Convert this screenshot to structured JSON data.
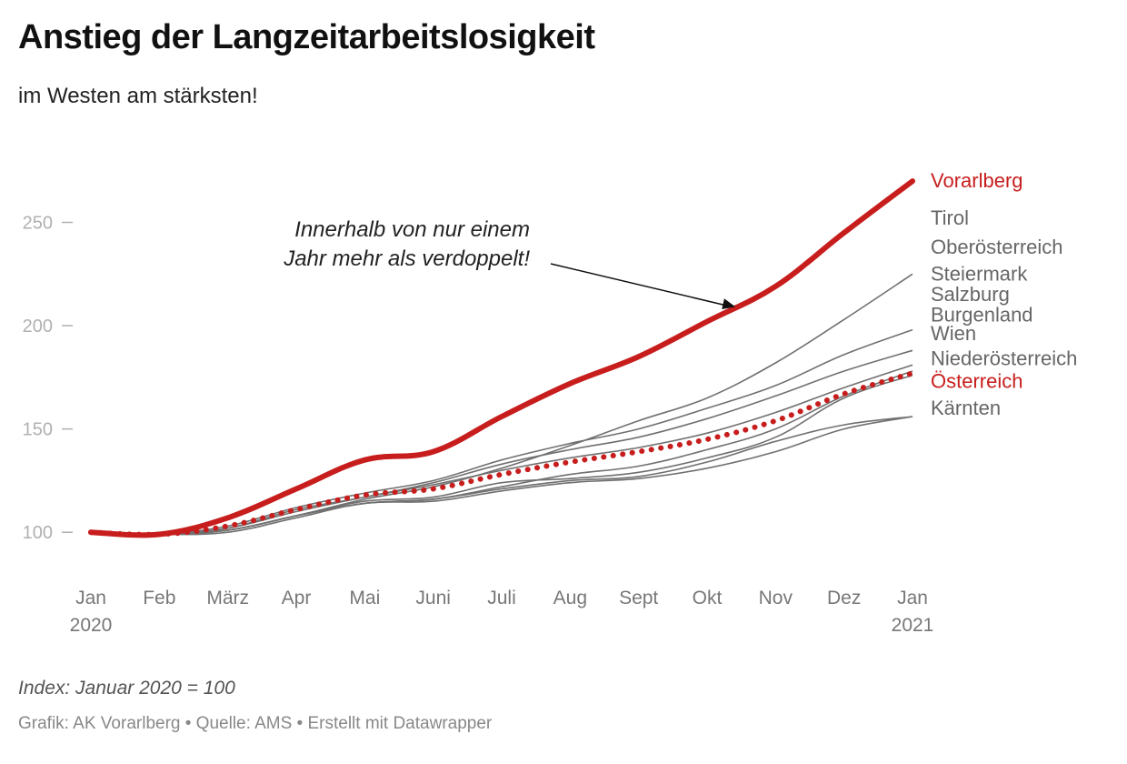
{
  "title": "Anstieg der Langzeitarbeitslosigkeit",
  "subtitle": "im Westen am stärksten!",
  "note": "Index: Januar 2020 = 100",
  "footer": "Grafik: AK Vorarlberg • Quelle: AMS • Erstellt mit Datawrapper",
  "colors": {
    "highlight": "#c71e1d",
    "other": "#707070",
    "axis_text": "#b0b0b0",
    "tick_text": "#777777",
    "label_text": "#666666"
  },
  "chart_data": {
    "type": "line",
    "ylim": [
      75,
      285
    ],
    "yticks": [
      100,
      150,
      200,
      250
    ],
    "xticks": [
      {
        "x": 0,
        "label": "Jan",
        "year": "2020"
      },
      {
        "x": 1,
        "label": "Feb",
        "year": ""
      },
      {
        "x": 2,
        "label": "März",
        "year": ""
      },
      {
        "x": 3,
        "label": "Apr",
        "year": ""
      },
      {
        "x": 4,
        "label": "Mai",
        "year": ""
      },
      {
        "x": 5,
        "label": "Juni",
        "year": ""
      },
      {
        "x": 6,
        "label": "Juli",
        "year": ""
      },
      {
        "x": 7,
        "label": "Aug",
        "year": ""
      },
      {
        "x": 8,
        "label": "Sept",
        "year": ""
      },
      {
        "x": 9,
        "label": "Okt",
        "year": ""
      },
      {
        "x": 10,
        "label": "Nov",
        "year": ""
      },
      {
        "x": 11,
        "label": "Dez",
        "year": ""
      },
      {
        "x": 12,
        "label": "Jan",
        "year": "2021"
      }
    ],
    "annotation": {
      "lines": [
        "Innerhalb von nur einem",
        "Jahr mehr als verdoppelt!"
      ],
      "target_series": "Vorarlberg",
      "target_x": 9.6
    },
    "series": [
      {
        "name": "Tirol",
        "style": "other",
        "label_value": 252,
        "values": [
          100,
          99,
          101,
          108,
          116,
          122,
          131,
          142,
          154,
          165,
          182,
          203,
          225
        ]
      },
      {
        "name": "Oberösterreich",
        "style": "other",
        "label_value": 238,
        "values": [
          100,
          99,
          103,
          112,
          119,
          125,
          135,
          143,
          150,
          160,
          171,
          186,
          198
        ]
      },
      {
        "name": "Steiermark",
        "style": "other",
        "label_value": 225,
        "values": [
          100,
          99,
          102,
          111,
          117,
          124,
          133,
          140,
          146,
          155,
          166,
          178,
          188
        ]
      },
      {
        "name": "Salzburg",
        "style": "other",
        "label_value": 215,
        "values": [
          100,
          99,
          102,
          110,
          117,
          123,
          130,
          136,
          141,
          148,
          158,
          170,
          181
        ]
      },
      {
        "name": "Burgenland",
        "style": "other",
        "label_value": 205,
        "values": [
          100,
          99,
          101,
          108,
          114,
          116,
          122,
          128,
          132,
          140,
          150,
          166,
          178
        ]
      },
      {
        "name": "Wien",
        "style": "other",
        "label_value": 196,
        "values": [
          100,
          99,
          101,
          108,
          115,
          117,
          124,
          126,
          129,
          136,
          146,
          165,
          176
        ]
      },
      {
        "name": "Niederösterreich",
        "style": "other",
        "label_value": 184,
        "values": [
          100,
          99,
          101,
          108,
          114,
          116,
          121,
          125,
          127,
          134,
          144,
          152,
          156
        ]
      },
      {
        "name": "Kärnten",
        "style": "other",
        "label_value": 160,
        "values": [
          100,
          99,
          100,
          107,
          114,
          115,
          120,
          124,
          126,
          131,
          139,
          150,
          156
        ]
      },
      {
        "name": "Österreich",
        "style": "dotted",
        "label_value": 173,
        "values": [
          100,
          99,
          103,
          111,
          118,
          121,
          128,
          134,
          139,
          145,
          154,
          167,
          177
        ]
      },
      {
        "name": "Vorarlberg",
        "style": "highlight",
        "label_value": 270,
        "values": [
          100,
          99,
          107,
          121,
          135,
          139,
          156,
          172,
          185,
          202,
          219,
          245,
          270
        ]
      }
    ]
  }
}
